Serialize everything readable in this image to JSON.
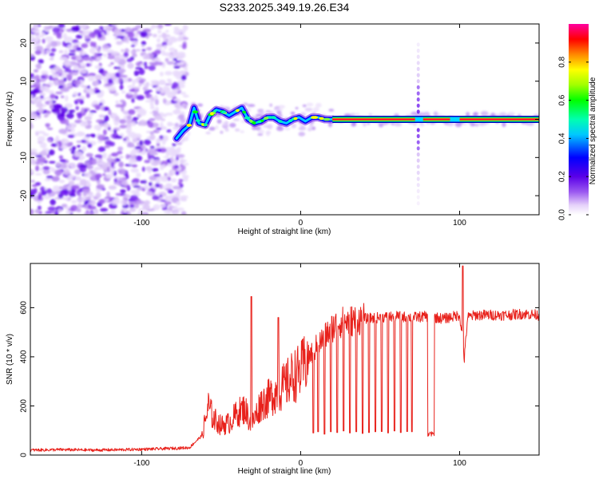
{
  "chart_data": [
    {
      "type": "heatmap",
      "title": "S233.2025.349.19.26.E34",
      "xlabel": "Height of straight line (km)",
      "ylabel": "Frequency (Hz)",
      "xlim": [
        -170,
        150
      ],
      "ylim": [
        -25,
        25
      ],
      "xticks": [
        -100,
        0,
        100
      ],
      "xtick_labels": [
        "-100",
        "0",
        "100"
      ],
      "yticks": [
        -20,
        -10,
        0,
        10,
        20
      ],
      "ytick_labels": [
        "-20",
        "-10",
        "0",
        "10",
        "20"
      ],
      "colorbar": {
        "label": "Normalized spectral amplitude",
        "range": [
          0,
          1
        ],
        "ticks": [
          0.0,
          0.2,
          0.4,
          0.6,
          0.8
        ],
        "tick_labels": [
          "0.0",
          "0.2",
          "0.4",
          "0.6",
          "0.8"
        ],
        "colormap": "rainbow (white-violet-blue-cyan-green-yellow-red-magenta)"
      },
      "features": {
        "noise_region_x": [
          -170,
          -78
        ],
        "signal_track": [
          [
            -78,
            -5
          ],
          [
            -74,
            -3
          ],
          [
            -70,
            -1.5
          ],
          [
            -67,
            3
          ],
          [
            -64,
            -1
          ],
          [
            -60,
            -1.5
          ],
          [
            -57,
            1
          ],
          [
            -53,
            2.5
          ],
          [
            -49,
            2
          ],
          [
            -45,
            1
          ],
          [
            -41,
            2
          ],
          [
            -37,
            3
          ],
          [
            -33,
            0
          ],
          [
            -29,
            -1
          ],
          [
            -25,
            -0.5
          ],
          [
            -21,
            0.5
          ],
          [
            -17,
            0.5
          ],
          [
            -13,
            -0.5
          ],
          [
            -9,
            -1
          ],
          [
            -5,
            0
          ],
          [
            -1,
            0.5
          ],
          [
            3,
            -0.5
          ],
          [
            7,
            0.5
          ],
          [
            11,
            0.5
          ],
          [
            15,
            0
          ],
          [
            20,
            0
          ],
          [
            150,
            0
          ]
        ],
        "vertical_line_x": 74
      }
    },
    {
      "type": "line",
      "title": "",
      "xlabel": "Height of straight line (km)",
      "ylabel": "SNR (10 * v/v)",
      "xlim": [
        -170,
        150
      ],
      "ylim": [
        0,
        780
      ],
      "xticks": [
        -100,
        0,
        100
      ],
      "xtick_labels": [
        "-100",
        "0",
        "100"
      ],
      "yticks": [
        0,
        200,
        400,
        600
      ],
      "ytick_labels": [
        "0",
        "200",
        "400",
        "600"
      ],
      "color": "#e8211b",
      "series": [
        {
          "name": "SNR",
          "x": [
            -170,
            -150,
            -130,
            -110,
            -90,
            -70,
            -62,
            -58,
            -55,
            -50,
            -45,
            -40,
            -35,
            -31,
            -25,
            -20,
            -15,
            -10,
            -5,
            0,
            5,
            10,
            15,
            20,
            25,
            30,
            40,
            50,
            60,
            70,
            80,
            90,
            100,
            102,
            103,
            105,
            110,
            120,
            130,
            140,
            150
          ],
          "y": [
            20,
            22,
            20,
            22,
            25,
            30,
            80,
            200,
            150,
            120,
            130,
            170,
            190,
            120,
            210,
            230,
            260,
            280,
            320,
            340,
            400,
            440,
            480,
            520,
            540,
            545,
            555,
            560,
            565,
            560,
            565,
            555,
            570,
            470,
            390,
            560,
            570,
            570,
            570,
            575,
            570
          ]
        }
      ],
      "spikes": [
        {
          "x": -31,
          "y": 645
        },
        {
          "x": -14,
          "y": 560
        },
        {
          "x": 102,
          "y": 770
        }
      ],
      "dropout_min_x": [
        8,
        11,
        15,
        19,
        23,
        27,
        31,
        35,
        39,
        43,
        47,
        51,
        55,
        59,
        63,
        67,
        70
      ],
      "dropout_min_y": [
        90,
        95,
        85,
        95,
        92,
        98,
        90,
        95,
        88,
        92,
        95,
        96,
        90,
        98,
        92,
        96,
        95
      ],
      "plateau_dip": {
        "x": [
          80,
          84
        ],
        "y": 85
      }
    }
  ]
}
